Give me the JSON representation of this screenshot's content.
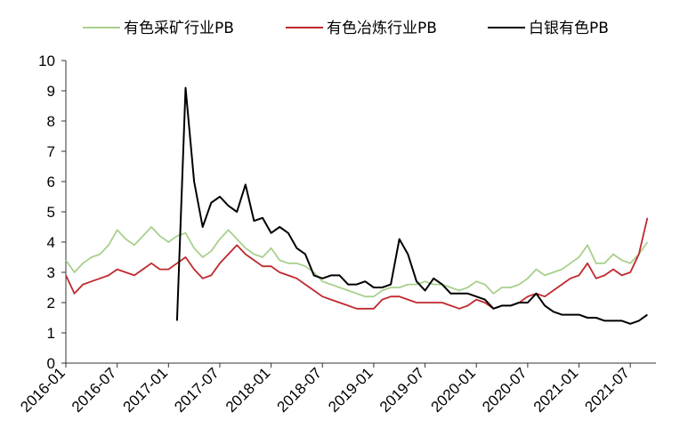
{
  "chart_data": {
    "type": "line",
    "title": "",
    "xlabel": "",
    "ylabel": "",
    "ylim": [
      0,
      10
    ],
    "yticks": [
      0,
      1,
      2,
      3,
      4,
      5,
      6,
      7,
      8,
      9,
      10
    ],
    "xlim": [
      "2016-01",
      "2021-10"
    ],
    "xticks": [
      "2016-01",
      "2016-07",
      "2017-01",
      "2017-07",
      "2018-01",
      "2018-07",
      "2019-01",
      "2019-07",
      "2020-01",
      "2020-07",
      "2021-01",
      "2021-07"
    ],
    "grid": false,
    "legend": "top",
    "series": [
      {
        "name": "有色采矿行业PB",
        "color": "#a8d08d",
        "x": [
          "2016-01",
          "2016-02",
          "2016-03",
          "2016-04",
          "2016-05",
          "2016-06",
          "2016-07",
          "2016-08",
          "2016-09",
          "2016-10",
          "2016-11",
          "2016-12",
          "2017-01",
          "2017-02",
          "2017-03",
          "2017-04",
          "2017-05",
          "2017-06",
          "2017-07",
          "2017-08",
          "2017-09",
          "2017-10",
          "2017-11",
          "2017-12",
          "2018-01",
          "2018-02",
          "2018-03",
          "2018-04",
          "2018-05",
          "2018-06",
          "2018-07",
          "2018-08",
          "2018-09",
          "2018-10",
          "2018-11",
          "2018-12",
          "2019-01",
          "2019-02",
          "2019-03",
          "2019-04",
          "2019-05",
          "2019-06",
          "2019-07",
          "2019-08",
          "2019-09",
          "2019-10",
          "2019-11",
          "2019-12",
          "2020-01",
          "2020-02",
          "2020-03",
          "2020-04",
          "2020-05",
          "2020-06",
          "2020-07",
          "2020-08",
          "2020-09",
          "2020-10",
          "2020-11",
          "2020-12",
          "2021-01",
          "2021-02",
          "2021-03",
          "2021-04",
          "2021-05",
          "2021-06",
          "2021-07",
          "2021-08",
          "2021-09"
        ],
        "values": [
          3.4,
          3.0,
          3.3,
          3.5,
          3.6,
          3.9,
          4.4,
          4.1,
          3.9,
          4.2,
          4.5,
          4.2,
          4.0,
          4.2,
          4.3,
          3.8,
          3.5,
          3.7,
          4.1,
          4.4,
          4.1,
          3.8,
          3.6,
          3.5,
          3.8,
          3.4,
          3.3,
          3.3,
          3.2,
          3.0,
          2.7,
          2.6,
          2.5,
          2.4,
          2.3,
          2.2,
          2.2,
          2.4,
          2.5,
          2.5,
          2.6,
          2.6,
          2.7,
          2.6,
          2.6,
          2.5,
          2.4,
          2.5,
          2.7,
          2.6,
          2.3,
          2.5,
          2.5,
          2.6,
          2.8,
          3.1,
          2.9,
          3.0,
          3.1,
          3.3,
          3.5,
          3.9,
          3.3,
          3.3,
          3.6,
          3.4,
          3.3,
          3.6,
          4.0
        ]
      },
      {
        "name": "有色冶炼行业PB",
        "color": "#c0282d",
        "x": [
          "2016-01",
          "2016-02",
          "2016-03",
          "2016-04",
          "2016-05",
          "2016-06",
          "2016-07",
          "2016-08",
          "2016-09",
          "2016-10",
          "2016-11",
          "2016-12",
          "2017-01",
          "2017-02",
          "2017-03",
          "2017-04",
          "2017-05",
          "2017-06",
          "2017-07",
          "2017-08",
          "2017-09",
          "2017-10",
          "2017-11",
          "2017-12",
          "2018-01",
          "2018-02",
          "2018-03",
          "2018-04",
          "2018-05",
          "2018-06",
          "2018-07",
          "2018-08",
          "2018-09",
          "2018-10",
          "2018-11",
          "2018-12",
          "2019-01",
          "2019-02",
          "2019-03",
          "2019-04",
          "2019-05",
          "2019-06",
          "2019-07",
          "2019-08",
          "2019-09",
          "2019-10",
          "2019-11",
          "2019-12",
          "2020-01",
          "2020-02",
          "2020-03",
          "2020-04",
          "2020-05",
          "2020-06",
          "2020-07",
          "2020-08",
          "2020-09",
          "2020-10",
          "2020-11",
          "2020-12",
          "2021-01",
          "2021-02",
          "2021-03",
          "2021-04",
          "2021-05",
          "2021-06",
          "2021-07",
          "2021-08",
          "2021-09"
        ],
        "values": [
          2.9,
          2.3,
          2.6,
          2.7,
          2.8,
          2.9,
          3.1,
          3.0,
          2.9,
          3.1,
          3.3,
          3.1,
          3.1,
          3.3,
          3.5,
          3.1,
          2.8,
          2.9,
          3.3,
          3.6,
          3.9,
          3.6,
          3.4,
          3.2,
          3.2,
          3.0,
          2.9,
          2.8,
          2.6,
          2.4,
          2.2,
          2.1,
          2.0,
          1.9,
          1.8,
          1.8,
          1.8,
          2.1,
          2.2,
          2.2,
          2.1,
          2.0,
          2.0,
          2.0,
          2.0,
          1.9,
          1.8,
          1.9,
          2.1,
          2.0,
          1.8,
          1.9,
          1.9,
          2.0,
          2.2,
          2.3,
          2.2,
          2.4,
          2.6,
          2.8,
          2.9,
          3.3,
          2.8,
          2.9,
          3.1,
          2.9,
          3.0,
          3.6,
          4.8
        ]
      },
      {
        "name": "白银有色PB",
        "color": "#000000",
        "x": [
          "2017-02",
          "2017-03",
          "2017-04",
          "2017-05",
          "2017-06",
          "2017-07",
          "2017-08",
          "2017-09",
          "2017-10",
          "2017-11",
          "2017-12",
          "2018-01",
          "2018-02",
          "2018-03",
          "2018-04",
          "2018-05",
          "2018-06",
          "2018-07",
          "2018-08",
          "2018-09",
          "2018-10",
          "2018-11",
          "2018-12",
          "2019-01",
          "2019-02",
          "2019-03",
          "2019-04",
          "2019-05",
          "2019-06",
          "2019-07",
          "2019-08",
          "2019-09",
          "2019-10",
          "2019-11",
          "2019-12",
          "2020-01",
          "2020-02",
          "2020-03",
          "2020-04",
          "2020-05",
          "2020-06",
          "2020-07",
          "2020-08",
          "2020-09",
          "2020-10",
          "2020-11",
          "2020-12",
          "2021-01",
          "2021-02",
          "2021-03",
          "2021-04",
          "2021-05",
          "2021-06",
          "2021-07",
          "2021-08",
          "2021-09"
        ],
        "values": [
          1.4,
          9.1,
          6.0,
          4.5,
          5.3,
          5.5,
          5.2,
          5.0,
          5.9,
          4.7,
          4.8,
          4.3,
          4.5,
          4.3,
          3.8,
          3.6,
          2.9,
          2.8,
          2.9,
          2.9,
          2.6,
          2.6,
          2.7,
          2.5,
          2.5,
          2.6,
          4.1,
          3.6,
          2.7,
          2.4,
          2.8,
          2.6,
          2.3,
          2.3,
          2.3,
          2.2,
          2.1,
          1.8,
          1.9,
          1.9,
          2.0,
          2.0,
          2.3,
          1.9,
          1.7,
          1.6,
          1.6,
          1.6,
          1.5,
          1.5,
          1.4,
          1.4,
          1.4,
          1.3,
          1.4,
          1.6
        ]
      }
    ]
  }
}
